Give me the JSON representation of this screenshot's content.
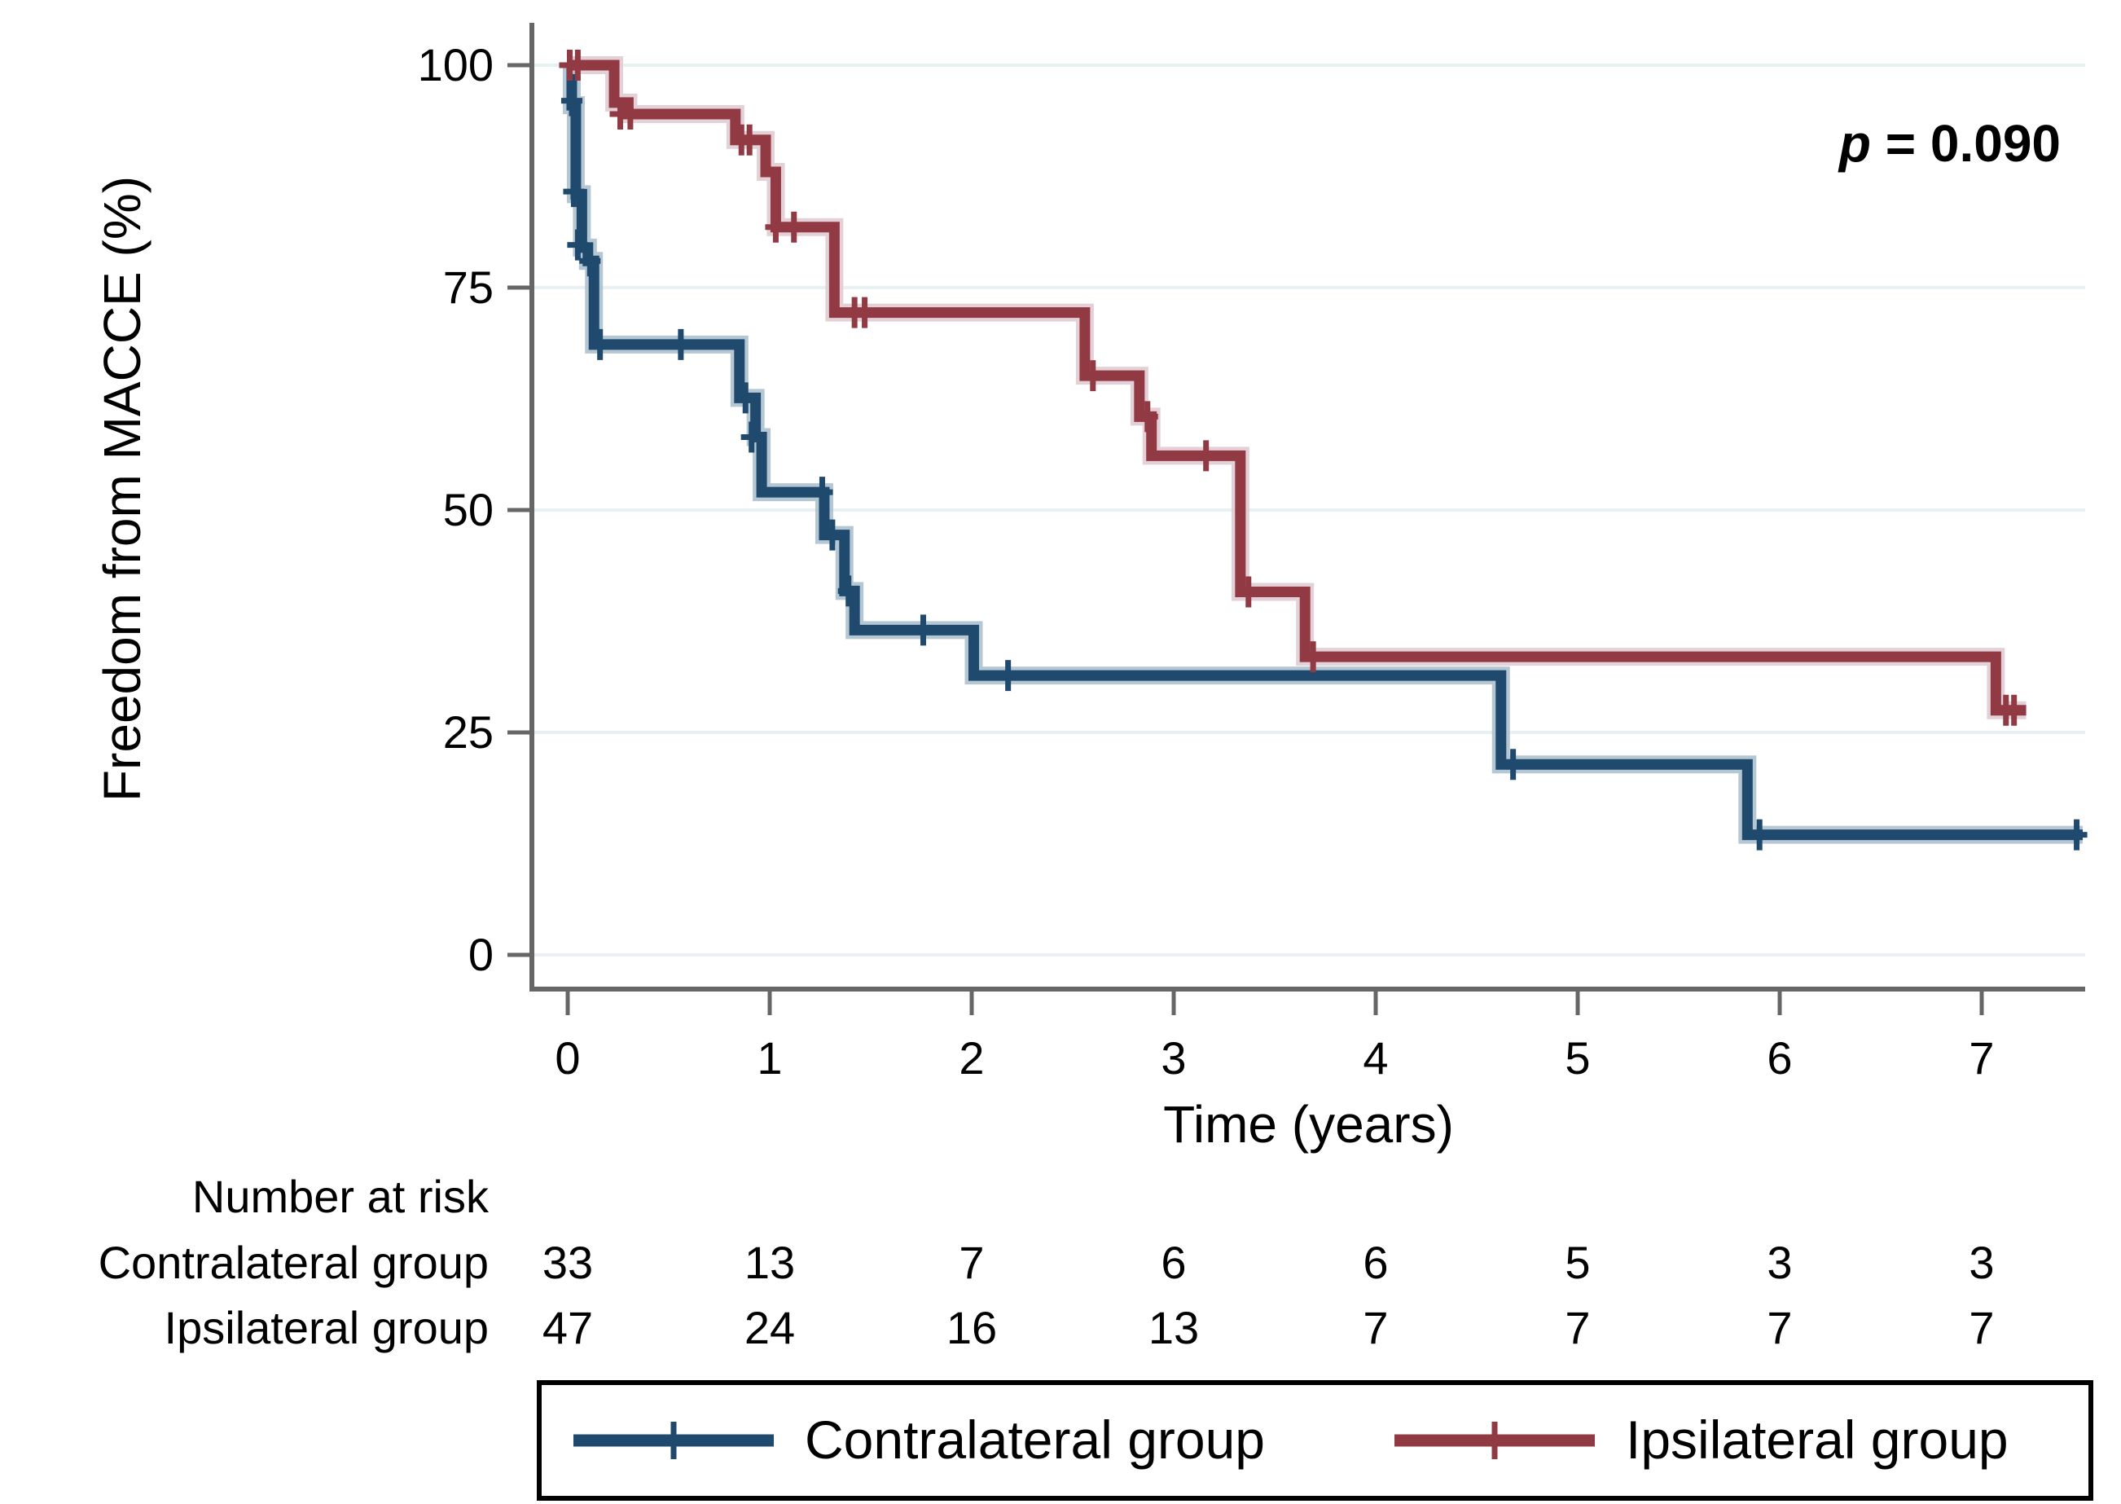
{
  "chart_data": {
    "type": "line",
    "subtype": "kaplan-meier-step",
    "title": "",
    "xlabel": "Time (years)",
    "ylabel": "Freedom from MACCE (%)",
    "p_annotation": {
      "prefix": "p",
      "rest": " = 0.090"
    },
    "x_ticks": [
      0,
      1,
      2,
      3,
      4,
      5,
      6,
      7
    ],
    "y_ticks": [
      0,
      25,
      50,
      75,
      100
    ],
    "xlim": [
      -0.18,
      7.51
    ],
    "ylim": [
      -3.8,
      104.8
    ],
    "grid": "horizontal-light",
    "legend_position": "bottom-boxed",
    "colors": {
      "contralateral": "#1f4a6e",
      "contralateral_halo": "#a9bdcd",
      "ipsilateral": "#923a44",
      "ipsilateral_halo": "#dfc9d0",
      "gridline": "#e8f1f2",
      "axis": "#666666",
      "text": "#000000",
      "legend_border": "#000000"
    },
    "series": [
      {
        "name": "Contralateral group",
        "color_key": "contralateral",
        "end_time": 7.5,
        "steps": [
          [
            0,
            100
          ],
          [
            0.02,
            95.5
          ],
          [
            0.04,
            85.5
          ],
          [
            0.07,
            79.5
          ],
          [
            0.1,
            78.0
          ],
          [
            0.13,
            68.6
          ],
          [
            0.85,
            62.6
          ],
          [
            0.93,
            58.2
          ],
          [
            0.96,
            52.0
          ],
          [
            1.27,
            47.2
          ],
          [
            1.37,
            40.9
          ],
          [
            1.42,
            36.5
          ],
          [
            2.01,
            31.4
          ],
          [
            4.62,
            21.4
          ],
          [
            5.84,
            13.5
          ]
        ],
        "censors": [
          [
            0.02,
            96.0
          ],
          [
            0.03,
            85.8
          ],
          [
            0.05,
            79.8
          ],
          [
            0.11,
            78.0
          ],
          [
            0.16,
            68.6
          ],
          [
            0.56,
            68.6
          ],
          [
            0.88,
            62.6
          ],
          [
            0.91,
            58.2
          ],
          [
            1.26,
            52.0
          ],
          [
            1.31,
            47.2
          ],
          [
            1.39,
            40.9
          ],
          [
            1.76,
            36.5
          ],
          [
            2.18,
            31.4
          ],
          [
            4.68,
            21.4
          ],
          [
            5.9,
            13.5
          ],
          [
            7.47,
            13.5
          ]
        ]
      },
      {
        "name": "Ipsilateral group",
        "color_key": "ipsilateral",
        "end_time": 7.22,
        "steps": [
          [
            0,
            100
          ],
          [
            0.23,
            95.8
          ],
          [
            0.3,
            94.5
          ],
          [
            0.83,
            91.6
          ],
          [
            0.98,
            88.0
          ],
          [
            1.03,
            81.8
          ],
          [
            1.32,
            72.2
          ],
          [
            2.56,
            65.1
          ],
          [
            2.83,
            60.5
          ],
          [
            2.89,
            56.1
          ],
          [
            3.33,
            40.8
          ],
          [
            3.65,
            33.5
          ],
          [
            7.07,
            27.5
          ]
        ],
        "censors": [
          [
            0.01,
            100
          ],
          [
            0.05,
            100
          ],
          [
            0.26,
            94.5
          ],
          [
            0.31,
            94.5
          ],
          [
            0.86,
            91.6
          ],
          [
            0.9,
            91.6
          ],
          [
            1.03,
            81.8
          ],
          [
            1.12,
            81.8
          ],
          [
            1.42,
            72.2
          ],
          [
            1.47,
            72.2
          ],
          [
            2.6,
            65.1
          ],
          [
            2.87,
            60.5
          ],
          [
            3.16,
            56.1
          ],
          [
            3.37,
            40.8
          ],
          [
            3.69,
            33.5
          ],
          [
            7.12,
            27.5
          ],
          [
            7.16,
            27.5
          ]
        ]
      }
    ],
    "risk_table": {
      "header": "Number at risk",
      "time_points": [
        0,
        1,
        2,
        3,
        4,
        5,
        6,
        7
      ],
      "rows": [
        {
          "label": "Contralateral group",
          "counts": [
            33,
            13,
            7,
            6,
            6,
            5,
            3,
            3
          ]
        },
        {
          "label": "Ipsilateral group",
          "counts": [
            47,
            24,
            16,
            13,
            7,
            7,
            7,
            7
          ]
        }
      ]
    },
    "legend": {
      "entries": [
        {
          "label": "Contralateral group",
          "color_key": "contralateral"
        },
        {
          "label": "Ipsilateral group",
          "color_key": "ipsilateral"
        }
      ]
    }
  }
}
